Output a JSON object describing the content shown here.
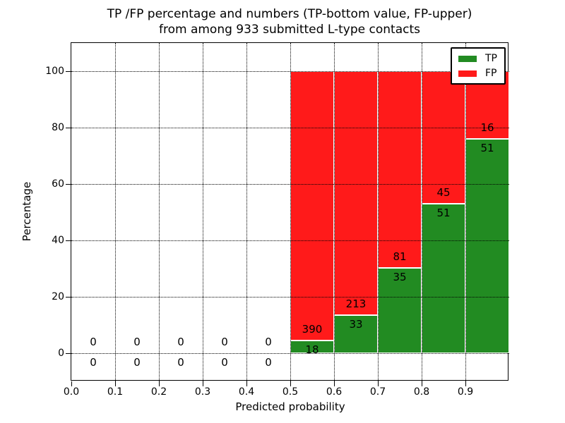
{
  "title": {
    "line1": "TP /FP percentage and numbers (TP-bottom value, FP-upper)",
    "line2": "from among 933 submitted L-type contacts"
  },
  "axes": {
    "xlabel": "Predicted probability",
    "ylabel": "Percentage"
  },
  "legend": {
    "entries": [
      {
        "label": "TP",
        "color": "#228b22"
      },
      {
        "label": "FP",
        "color": "#ff1a1a"
      }
    ]
  },
  "chart_data": {
    "type": "bar",
    "stacked": true,
    "title": "TP /FP percentage and numbers (TP-bottom value, FP-upper) from among 933 submitted L-type contacts",
    "total_submitted_contacts": 933,
    "xlabel": "Predicted probability",
    "ylabel": "Percentage",
    "xlim": [
      0.0,
      1.0
    ],
    "ylim": [
      -10,
      110
    ],
    "grid": true,
    "grid_style": "dotted",
    "legend_position": "upper right",
    "x_ticks": {
      "values": [
        0.0,
        0.1,
        0.2,
        0.3,
        0.4,
        0.5,
        0.6,
        0.7,
        0.8,
        0.9
      ],
      "labels": [
        "0.0",
        "0.1",
        "0.2",
        "0.3",
        "0.4",
        "0.5",
        "0.6",
        "0.7",
        "0.8",
        "0.9"
      ]
    },
    "y_ticks": {
      "values": [
        0,
        20,
        40,
        60,
        80,
        100
      ],
      "labels": [
        "0",
        "20",
        "40",
        "60",
        "80",
        "100"
      ]
    },
    "bin_width": 0.1,
    "categories": [
      "0.0-0.1",
      "0.1-0.2",
      "0.2-0.3",
      "0.3-0.4",
      "0.4-0.5",
      "0.5-0.6",
      "0.6-0.7",
      "0.7-0.8",
      "0.8-0.9",
      "0.9-1.0"
    ],
    "bin_starts": [
      0.0,
      0.1,
      0.2,
      0.3,
      0.4,
      0.5,
      0.6,
      0.7,
      0.8,
      0.9
    ],
    "series": [
      {
        "name": "TP",
        "color": "#228b22",
        "values": [
          0,
          0,
          0,
          0,
          0,
          18,
          33,
          35,
          51,
          51
        ]
      },
      {
        "name": "FP",
        "color": "#ff1a1a",
        "values": [
          0,
          0,
          0,
          0,
          0,
          390,
          213,
          81,
          45,
          16
        ]
      }
    ],
    "bar_value_labels_note": "TP count printed below TP/FP boundary, FP count printed above it; empty bins show 0 above and below the 0% line"
  }
}
